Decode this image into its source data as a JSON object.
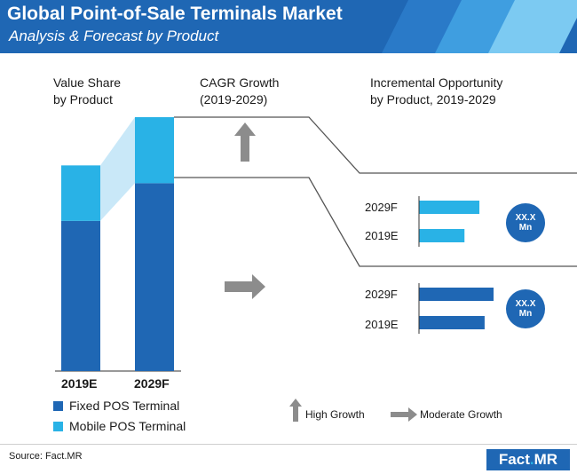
{
  "header": {
    "title": "Global Point-of-Sale Terminals Market",
    "subtitle": "Analysis & Forecast by Product"
  },
  "sections": {
    "value_share": [
      "Value Share",
      "by Product"
    ],
    "cagr": [
      "CAGR Growth",
      "(2019-2029)"
    ],
    "incremental": [
      "Incremental Opportunity",
      "by Product, 2019-2029"
    ]
  },
  "colors": {
    "fixed": "#1f67b4",
    "mobile": "#29b2e6",
    "arrow": "#8c8c8c",
    "header": "#1f67b4"
  },
  "chart_data": [
    {
      "type": "bar",
      "stacked": true,
      "categories": [
        "2019E",
        "2029F"
      ],
      "series": [
        {
          "name": "Fixed POS Terminal",
          "values": [
            0.73,
            0.74
          ]
        },
        {
          "name": "Mobile POS Terminal",
          "values": [
            0.27,
            0.26
          ]
        }
      ],
      "title": "Value Share by Product",
      "total_scale": [
        0.81,
        1.0
      ]
    },
    {
      "type": "bar",
      "orientation": "horizontal",
      "categories": [
        "2029F",
        "2019E"
      ],
      "values": [
        0.81,
        0.61
      ],
      "series_name": "Mobile POS Terminal",
      "growth": "High Growth",
      "callout": [
        "XX.X",
        "Mn"
      ]
    },
    {
      "type": "bar",
      "orientation": "horizontal",
      "categories": [
        "2029F",
        "2019E"
      ],
      "values": [
        1.0,
        0.88
      ],
      "series_name": "Fixed POS Terminal",
      "growth": "Moderate Growth",
      "callout": [
        "XX.X",
        "Mn"
      ]
    }
  ],
  "growth_legend": {
    "high": "High Growth",
    "moderate": "Moderate Growth"
  },
  "source": "Source: Fact.MR",
  "logo": {
    "main": "Fact",
    "dot": ".",
    "suffix": "MR"
  }
}
